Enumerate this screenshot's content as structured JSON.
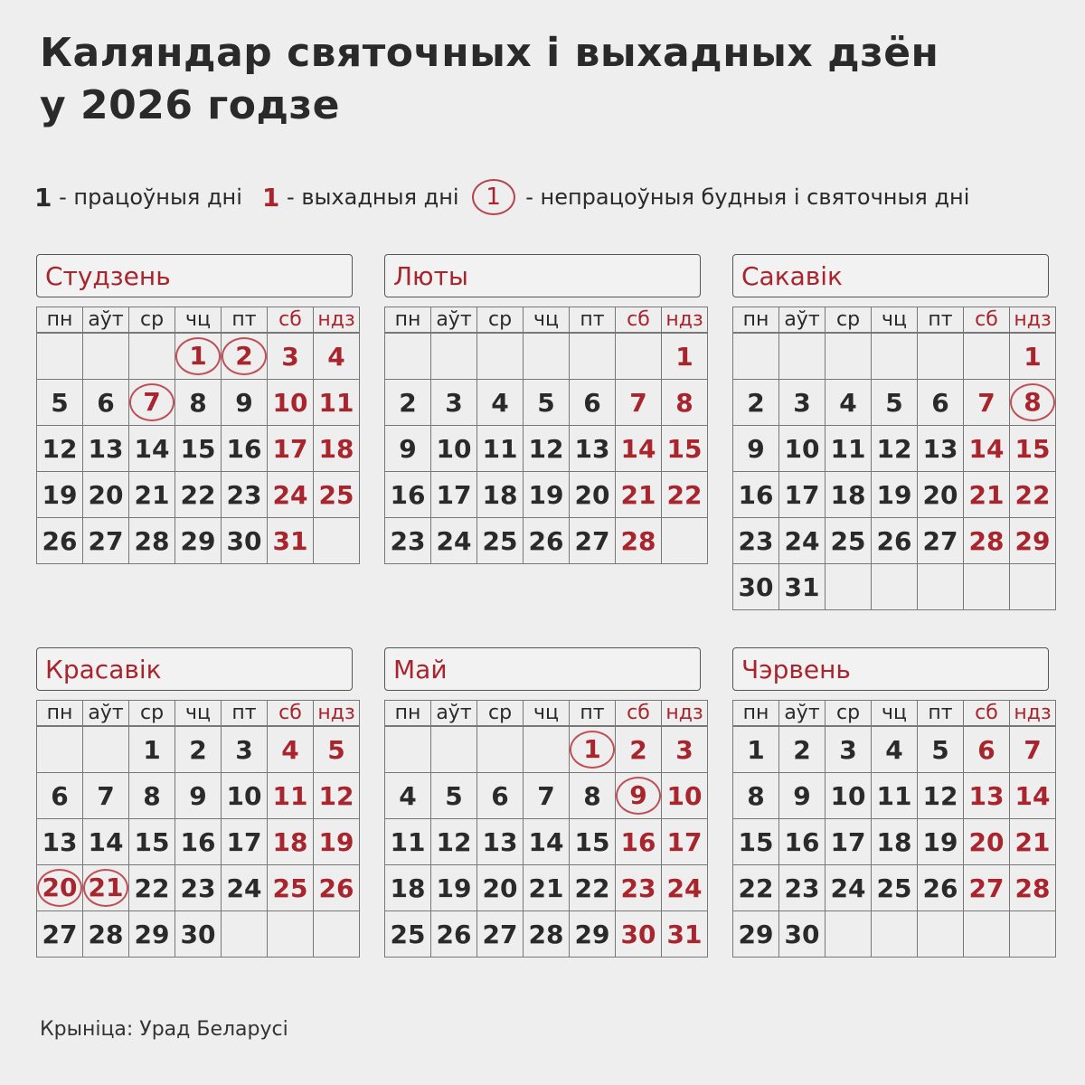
{
  "title_line1": "Каляндар святочных і выхадных дзён",
  "title_line2": "у 2026 годзе",
  "legend": {
    "sample": "1",
    "working": " - працоўныя дні",
    "weekend": " - выхадныя дні",
    "holiday": " - непрацоўныя будныя і святочныя дні"
  },
  "colors": {
    "accent": "#a8252e",
    "text": "#2a2a2a",
    "background": "#eeeeee"
  },
  "weekdays": [
    "пн",
    "аўт",
    "ср",
    "чц",
    "пт",
    "сб",
    "ндз"
  ],
  "months": [
    {
      "name": "Студзень",
      "weeks": [
        [
          "",
          "",
          "",
          1,
          2,
          3,
          4
        ],
        [
          5,
          6,
          7,
          8,
          9,
          10,
          11
        ],
        [
          12,
          13,
          14,
          15,
          16,
          17,
          18
        ],
        [
          19,
          20,
          21,
          22,
          23,
          24,
          25
        ],
        [
          26,
          27,
          28,
          29,
          30,
          31,
          ""
        ]
      ],
      "holidays": [
        1,
        2,
        7
      ]
    },
    {
      "name": "Люты",
      "weeks": [
        [
          "",
          "",
          "",
          "",
          "",
          "",
          1
        ],
        [
          2,
          3,
          4,
          5,
          6,
          7,
          8
        ],
        [
          9,
          10,
          11,
          12,
          13,
          14,
          15
        ],
        [
          16,
          17,
          18,
          19,
          20,
          21,
          22
        ],
        [
          23,
          24,
          25,
          26,
          27,
          28,
          ""
        ]
      ],
      "holidays": []
    },
    {
      "name": "Сакавік",
      "weeks": [
        [
          "",
          "",
          "",
          "",
          "",
          "",
          1
        ],
        [
          2,
          3,
          4,
          5,
          6,
          7,
          8
        ],
        [
          9,
          10,
          11,
          12,
          13,
          14,
          15
        ],
        [
          16,
          17,
          18,
          19,
          20,
          21,
          22
        ],
        [
          23,
          24,
          25,
          26,
          27,
          28,
          29
        ],
        [
          30,
          31,
          "",
          "",
          "",
          "",
          ""
        ]
      ],
      "holidays": [
        8
      ]
    },
    {
      "name": "Красавік",
      "weeks": [
        [
          "",
          "",
          1,
          2,
          3,
          4,
          5
        ],
        [
          6,
          7,
          8,
          9,
          10,
          11,
          12
        ],
        [
          13,
          14,
          15,
          16,
          17,
          18,
          19
        ],
        [
          20,
          21,
          22,
          23,
          24,
          25,
          26
        ],
        [
          27,
          28,
          29,
          30,
          "",
          "",
          ""
        ]
      ],
      "holidays": [
        20,
        21
      ]
    },
    {
      "name": "Май",
      "weeks": [
        [
          "",
          "",
          "",
          "",
          1,
          2,
          3
        ],
        [
          4,
          5,
          6,
          7,
          8,
          9,
          10
        ],
        [
          11,
          12,
          13,
          14,
          15,
          16,
          17
        ],
        [
          18,
          19,
          20,
          21,
          22,
          23,
          24
        ],
        [
          25,
          26,
          27,
          28,
          29,
          30,
          31
        ]
      ],
      "holidays": [
        1,
        9
      ]
    },
    {
      "name": "Чэрвень",
      "weeks": [
        [
          1,
          2,
          3,
          4,
          5,
          6,
          7
        ],
        [
          8,
          9,
          10,
          11,
          12,
          13,
          14
        ],
        [
          15,
          16,
          17,
          18,
          19,
          20,
          21
        ],
        [
          22,
          23,
          24,
          25,
          26,
          27,
          28
        ],
        [
          29,
          30,
          "",
          "",
          "",
          "",
          ""
        ]
      ],
      "holidays": []
    }
  ],
  "source": "Крыніца: Урад Беларусі"
}
